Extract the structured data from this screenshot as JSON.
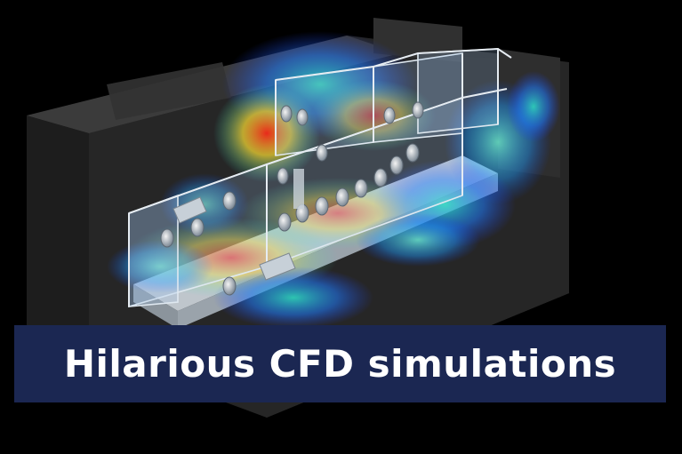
{
  "banner": {
    "title": "Hilarious CFD simulations"
  },
  "colors": {
    "background": "#000000",
    "banner_background": "#1b2752",
    "banner_text": "#ffffff",
    "flow_low": "#1e7bff",
    "flow_mid": "#2fe0c8",
    "flow_high": "#ffe033",
    "flow_peak": "#ff2a1a"
  },
  "image": {
    "subject": "cleanroom-isolator-airflow-cfd-render"
  }
}
